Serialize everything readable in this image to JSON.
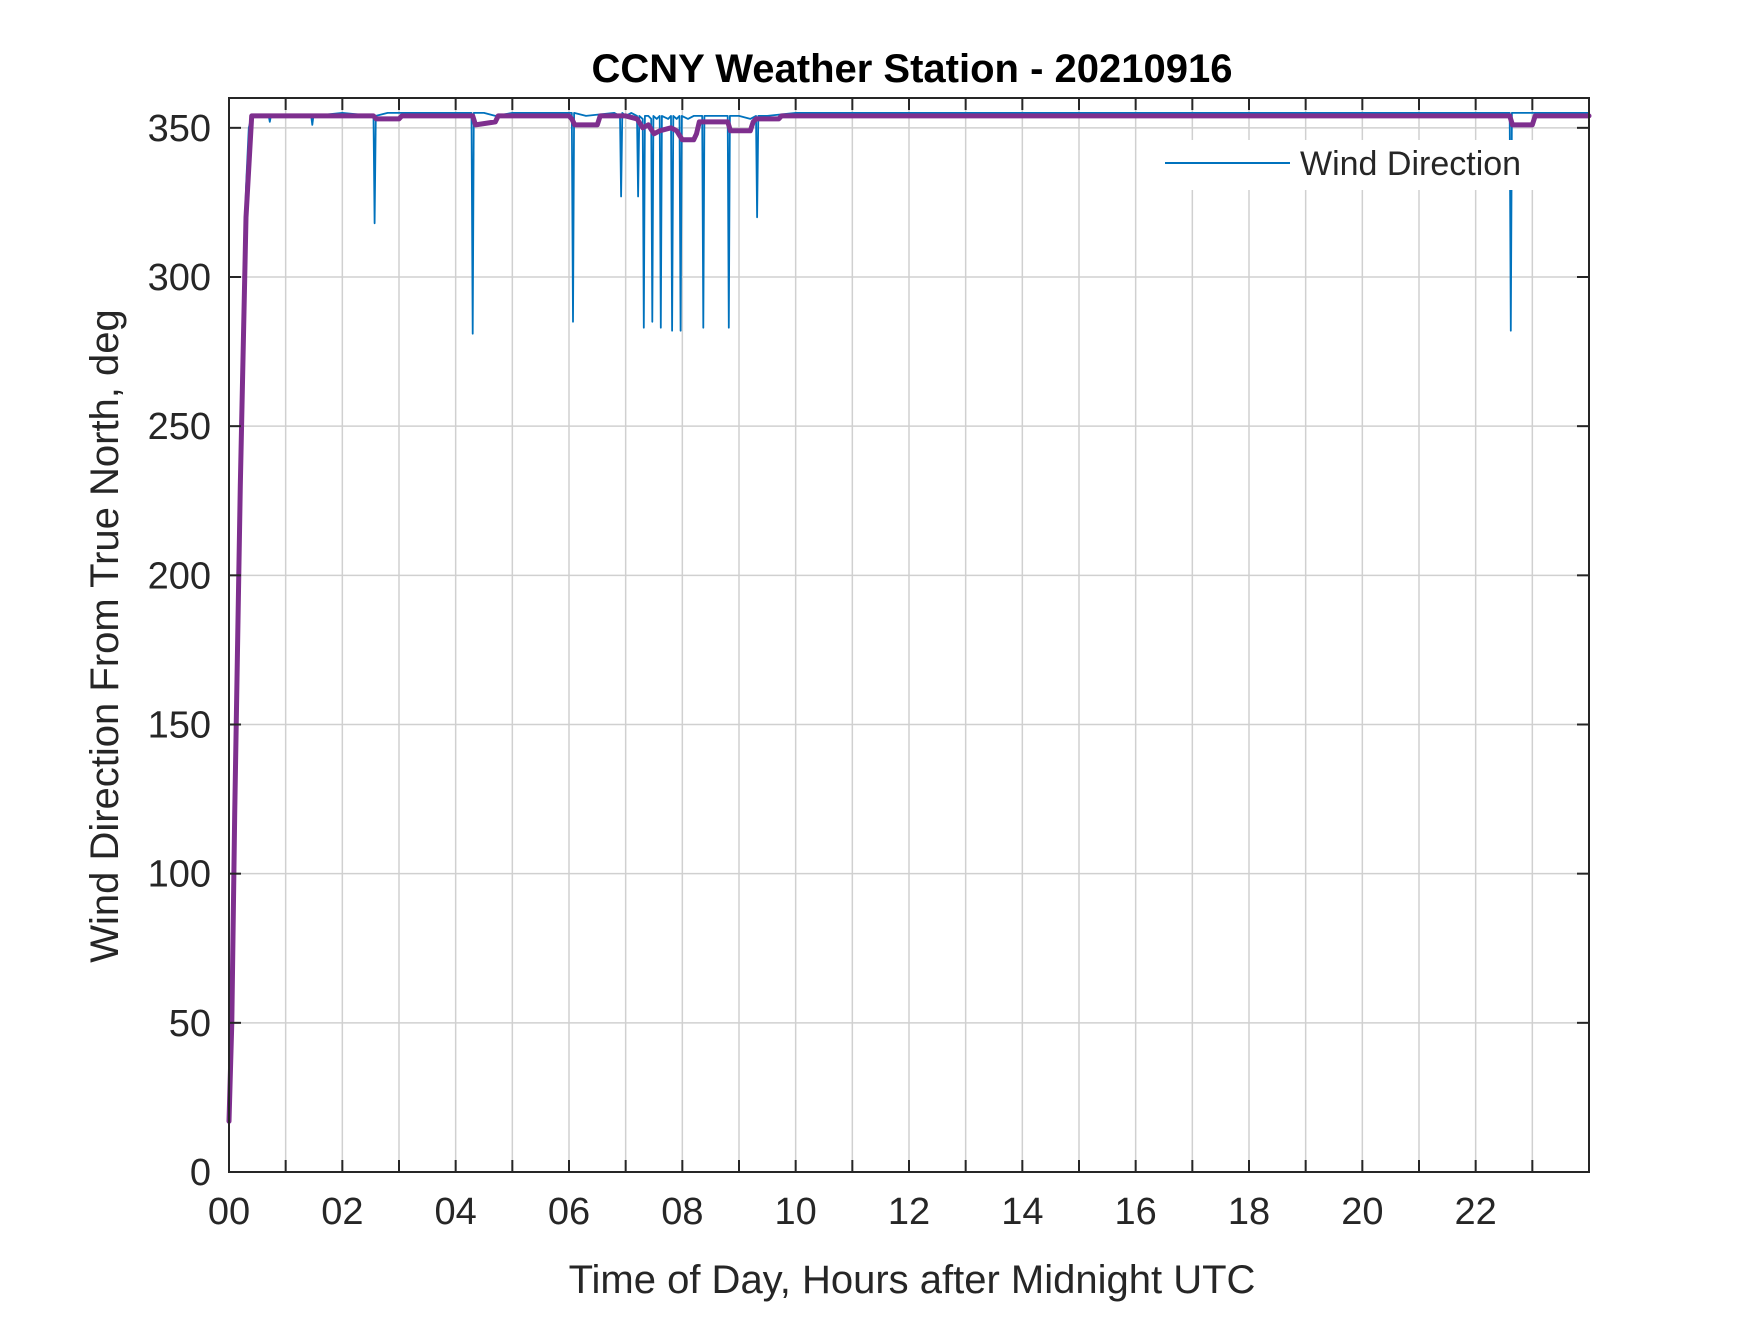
{
  "chart_data": {
    "type": "line",
    "title": "CCNY Weather Station - 20210916",
    "xlabel": "Time of Day, Hours after Midnight UTC",
    "ylabel": "Wind Direction From True North, deg",
    "xlim": [
      0,
      24
    ],
    "ylim": [
      0,
      360
    ],
    "x_ticks": [
      0,
      1,
      2,
      3,
      4,
      5,
      6,
      7,
      8,
      9,
      10,
      11,
      12,
      13,
      14,
      15,
      16,
      17,
      18,
      19,
      20,
      21,
      22,
      23
    ],
    "x_tick_labels": [
      "00",
      "02",
      "04",
      "06",
      "08",
      "10",
      "12",
      "14",
      "16",
      "18",
      "20",
      "22"
    ],
    "x_tick_label_values": [
      0,
      2,
      4,
      6,
      8,
      10,
      12,
      14,
      16,
      18,
      20,
      22
    ],
    "y_ticks": [
      0,
      50,
      100,
      150,
      200,
      250,
      300,
      350
    ],
    "y_tick_labels": [
      "0",
      "50",
      "100",
      "150",
      "200",
      "250",
      "300",
      "350"
    ],
    "grid": true,
    "legend": {
      "position": "top-right",
      "entries": [
        "Wind Direction"
      ]
    },
    "series": [
      {
        "name": "Wind Direction",
        "color": "#0072BD",
        "line_width": "thin",
        "x": [
          0.0,
          0.02,
          0.05,
          0.1,
          0.15,
          0.2,
          0.25,
          0.3,
          0.35,
          0.4,
          0.5,
          0.7,
          0.72,
          0.74,
          1.0,
          1.45,
          1.47,
          1.49,
          2.0,
          2.55,
          2.57,
          2.59,
          2.8,
          3.0,
          3.5,
          4.0,
          4.28,
          4.3,
          4.32,
          4.5,
          4.7,
          5.0,
          5.5,
          6.0,
          6.05,
          6.07,
          6.09,
          6.3,
          6.8,
          6.9,
          6.92,
          6.94,
          7.0,
          7.1,
          7.2,
          7.22,
          7.24,
          7.3,
          7.32,
          7.34,
          7.4,
          7.45,
          7.47,
          7.49,
          7.55,
          7.6,
          7.62,
          7.64,
          7.75,
          7.8,
          7.82,
          7.84,
          7.9,
          7.95,
          7.97,
          7.99,
          8.1,
          8.2,
          8.3,
          8.35,
          8.37,
          8.39,
          8.5,
          8.7,
          8.8,
          8.82,
          8.84,
          9.0,
          9.2,
          9.3,
          9.32,
          9.34,
          9.5,
          10.0,
          11.0,
          12.0,
          13.0,
          14.0,
          15.0,
          16.0,
          17.0,
          18.0,
          19.0,
          20.0,
          21.0,
          22.0,
          22.5,
          22.6,
          22.62,
          22.64,
          22.8,
          23.0,
          23.5,
          24.0
        ],
        "y": [
          15,
          30,
          60,
          110,
          170,
          230,
          290,
          330,
          350,
          354,
          354,
          354,
          352,
          354,
          354,
          354,
          351,
          354,
          355,
          354,
          318,
          354,
          355,
          355,
          355,
          355,
          355,
          281,
          355,
          355,
          354,
          355,
          355,
          355,
          355,
          285,
          355,
          354,
          355,
          354,
          327,
          355,
          354,
          355,
          354,
          327,
          354,
          353,
          283,
          354,
          354,
          353,
          285,
          354,
          353,
          354,
          283,
          354,
          353,
          354,
          282,
          354,
          353,
          354,
          282,
          354,
          353,
          354,
          354,
          354,
          283,
          354,
          354,
          354,
          354,
          283,
          354,
          354,
          353,
          354,
          320,
          354,
          354,
          355,
          355,
          355,
          355,
          355,
          355,
          355,
          355,
          355,
          355,
          355,
          355,
          355,
          355,
          355,
          282,
          355,
          355,
          355,
          355,
          355
        ]
      },
      {
        "name": "",
        "color": "#7E2F8E",
        "line_width": "thick",
        "x": [
          0.0,
          0.05,
          0.1,
          0.2,
          0.3,
          0.4,
          0.5,
          1.0,
          2.0,
          2.55,
          2.6,
          3.0,
          3.05,
          4.0,
          4.3,
          4.35,
          4.7,
          4.75,
          5.5,
          6.0,
          6.05,
          6.1,
          6.5,
          6.55,
          7.0,
          7.2,
          7.3,
          7.4,
          7.5,
          7.6,
          7.8,
          7.9,
          8.0,
          8.2,
          8.25,
          8.3,
          8.4,
          8.8,
          8.85,
          9.2,
          9.25,
          9.3,
          9.7,
          9.75,
          10.0,
          12.0,
          15.0,
          18.0,
          21.0,
          22.0,
          22.6,
          22.65,
          23.0,
          23.05,
          24.0
        ],
        "y": [
          17,
          50,
          120,
          230,
          320,
          354,
          354,
          354,
          354,
          354,
          353,
          353,
          354,
          354,
          354,
          351,
          352,
          354,
          354,
          354,
          353,
          351,
          351,
          354,
          354,
          353,
          350,
          351,
          348,
          349,
          350,
          349,
          346,
          346,
          348,
          352,
          352,
          352,
          349,
          349,
          352,
          353,
          353,
          354,
          354,
          354,
          354,
          354,
          354,
          354,
          354,
          351,
          351,
          354,
          354
        ]
      }
    ]
  }
}
